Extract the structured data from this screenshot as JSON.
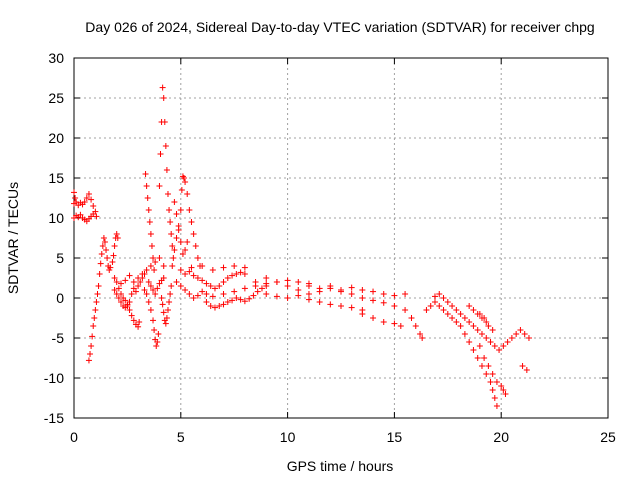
{
  "chart_data": {
    "type": "scatter",
    "title": "Day 026 of 2024, Sidereal Day-to-day VTEC variation (SDTVAR) for receiver chpg",
    "xlabel": "GPS time / hours",
    "ylabel": "SDTVAR / TECUs",
    "xlim": [
      0,
      25
    ],
    "ylim": [
      -15,
      30
    ],
    "xticks": [
      "0",
      "5",
      "10",
      "15",
      "20",
      "25"
    ],
    "yticks": [
      "-15",
      "-10",
      "-5",
      "0",
      "5",
      "10",
      "15",
      "20",
      "25",
      "30"
    ],
    "grid": true,
    "marker": "+",
    "series_color": "#ff0000",
    "series": [
      {
        "name": "SDTVAR",
        "points": [
          [
            0.0,
            11.8
          ],
          [
            0.1,
            12.0
          ],
          [
            0.2,
            11.6
          ],
          [
            0.3,
            11.9
          ],
          [
            0.4,
            11.7
          ],
          [
            0.5,
            12.0
          ],
          [
            0.6,
            12.5
          ],
          [
            0.7,
            13.0
          ],
          [
            0.8,
            12.3
          ],
          [
            0.9,
            11.5
          ],
          [
            0.0,
            10.0
          ],
          [
            0.1,
            10.3
          ],
          [
            0.2,
            10.1
          ],
          [
            0.3,
            10.4
          ],
          [
            0.4,
            10.0
          ],
          [
            0.5,
            9.8
          ],
          [
            0.6,
            9.6
          ],
          [
            0.7,
            9.9
          ],
          [
            0.8,
            10.2
          ],
          [
            0.9,
            10.5
          ],
          [
            1.0,
            10.8
          ],
          [
            1.05,
            10.2
          ],
          [
            0.0,
            13.2
          ],
          [
            0.05,
            12.5
          ],
          [
            0.7,
            -7.8
          ],
          [
            0.75,
            -7.0
          ],
          [
            0.8,
            -6.0
          ],
          [
            0.85,
            -4.8
          ],
          [
            0.9,
            -3.5
          ],
          [
            0.95,
            -2.5
          ],
          [
            1.0,
            -1.5
          ],
          [
            1.05,
            -0.5
          ],
          [
            1.1,
            0.5
          ],
          [
            1.15,
            1.5
          ],
          [
            1.2,
            3.0
          ],
          [
            1.25,
            4.3
          ],
          [
            1.3,
            5.5
          ],
          [
            1.35,
            6.5
          ],
          [
            1.4,
            7.5
          ],
          [
            1.45,
            7.0
          ],
          [
            1.5,
            6.0
          ],
          [
            1.55,
            5.0
          ],
          [
            1.6,
            4.0
          ],
          [
            1.65,
            3.5
          ],
          [
            1.7,
            3.8
          ],
          [
            1.8,
            4.5
          ],
          [
            1.85,
            5.3
          ],
          [
            1.9,
            6.5
          ],
          [
            1.95,
            7.5
          ],
          [
            2.0,
            8.0
          ],
          [
            2.05,
            7.5
          ],
          [
            1.9,
            2.5
          ],
          [
            2.0,
            2.0
          ],
          [
            2.1,
            1.2
          ],
          [
            2.2,
            0.5
          ],
          [
            2.3,
            0.0
          ],
          [
            2.4,
            -0.3
          ],
          [
            2.5,
            -0.8
          ],
          [
            2.6,
            -1.5
          ],
          [
            2.7,
            -2.2
          ],
          [
            2.8,
            -2.8
          ],
          [
            2.9,
            -3.3
          ],
          [
            3.0,
            -3.6
          ],
          [
            3.05,
            -3.0
          ],
          [
            1.9,
            1.0
          ],
          [
            2.0,
            0.5
          ],
          [
            2.1,
            0.0
          ],
          [
            2.2,
            -0.5
          ],
          [
            2.3,
            -1.0
          ],
          [
            2.4,
            -1.2
          ],
          [
            2.5,
            -1.0
          ],
          [
            2.6,
            -0.5
          ],
          [
            2.7,
            0.5
          ],
          [
            2.8,
            1.2
          ],
          [
            2.9,
            0.8
          ],
          [
            3.0,
            1.5
          ],
          [
            3.1,
            2.0
          ],
          [
            3.2,
            2.5
          ],
          [
            3.3,
            3.0
          ],
          [
            2.2,
            1.8
          ],
          [
            2.4,
            2.2
          ],
          [
            2.6,
            2.8
          ],
          [
            2.8,
            2.0
          ],
          [
            3.0,
            2.5
          ],
          [
            3.2,
            3.0
          ],
          [
            3.4,
            3.5
          ],
          [
            3.6,
            4.0
          ],
          [
            3.8,
            4.5
          ],
          [
            4.0,
            5.0
          ],
          [
            4.2,
            4.0
          ],
          [
            3.3,
            1.0
          ],
          [
            3.4,
            0.5
          ],
          [
            3.5,
            -0.5
          ],
          [
            3.6,
            -1.5
          ],
          [
            3.7,
            -2.8
          ],
          [
            3.75,
            -4.0
          ],
          [
            3.8,
            -5.2
          ],
          [
            3.85,
            -6.0
          ],
          [
            3.9,
            -5.5
          ],
          [
            3.95,
            -4.5
          ],
          [
            3.35,
            15.5
          ],
          [
            3.4,
            14.0
          ],
          [
            3.45,
            12.5
          ],
          [
            3.5,
            11.0
          ],
          [
            3.55,
            9.5
          ],
          [
            3.6,
            8.0
          ],
          [
            3.65,
            6.5
          ],
          [
            3.7,
            5.0
          ],
          [
            3.75,
            3.5
          ],
          [
            3.5,
            2.0
          ],
          [
            3.6,
            1.5
          ],
          [
            3.7,
            1.0
          ],
          [
            3.8,
            0.5
          ],
          [
            3.9,
            1.2
          ],
          [
            4.0,
            1.8
          ],
          [
            4.1,
            2.2
          ],
          [
            4.2,
            2.5
          ],
          [
            4.0,
            14.0
          ],
          [
            4.05,
            18.0
          ],
          [
            4.1,
            22.0
          ],
          [
            4.15,
            26.3
          ],
          [
            4.2,
            25.0
          ],
          [
            4.25,
            22.0
          ],
          [
            4.3,
            19.0
          ],
          [
            4.35,
            16.0
          ],
          [
            4.4,
            13.0
          ],
          [
            4.45,
            11.0
          ],
          [
            4.5,
            9.5
          ],
          [
            4.55,
            8.0
          ],
          [
            4.6,
            6.5
          ],
          [
            4.65,
            5.0
          ],
          [
            4.1,
            0.0
          ],
          [
            4.15,
            -0.8
          ],
          [
            4.2,
            -1.8
          ],
          [
            4.25,
            -2.8
          ],
          [
            4.3,
            -3.2
          ],
          [
            4.35,
            -2.5
          ],
          [
            4.4,
            -1.5
          ],
          [
            4.45,
            -0.5
          ],
          [
            4.5,
            0.5
          ],
          [
            4.55,
            1.5
          ],
          [
            4.6,
            4.0
          ],
          [
            4.7,
            6.0
          ],
          [
            4.8,
            7.5
          ],
          [
            4.9,
            8.5
          ],
          [
            5.0,
            7.0
          ],
          [
            5.1,
            5.5
          ],
          [
            5.2,
            6.0
          ],
          [
            5.3,
            7.0
          ],
          [
            4.7,
            12.0
          ],
          [
            4.8,
            10.5
          ],
          [
            4.9,
            9.0
          ],
          [
            5.0,
            11.0
          ],
          [
            5.05,
            13.5
          ],
          [
            5.1,
            15.2
          ],
          [
            5.15,
            15.0
          ],
          [
            5.2,
            14.5
          ],
          [
            5.3,
            13.0
          ],
          [
            5.4,
            11.0
          ],
          [
            5.5,
            9.5
          ],
          [
            5.6,
            8.0
          ],
          [
            5.7,
            6.5
          ],
          [
            5.8,
            5.0
          ],
          [
            5.9,
            4.0
          ],
          [
            4.8,
            2.0
          ],
          [
            5.0,
            1.5
          ],
          [
            5.2,
            1.0
          ],
          [
            5.4,
            0.5
          ],
          [
            5.6,
            0.0
          ],
          [
            5.8,
            0.3
          ],
          [
            6.0,
            0.8
          ],
          [
            6.2,
            0.5
          ],
          [
            5.0,
            3.5
          ],
          [
            5.2,
            3.0
          ],
          [
            5.4,
            3.3
          ],
          [
            5.6,
            2.8
          ],
          [
            5.8,
            2.5
          ],
          [
            6.0,
            2.2
          ],
          [
            6.2,
            1.8
          ],
          [
            6.4,
            1.5
          ],
          [
            6.6,
            1.2
          ],
          [
            6.8,
            1.5
          ],
          [
            7.0,
            2.0
          ],
          [
            7.2,
            2.5
          ],
          [
            7.4,
            2.8
          ],
          [
            7.6,
            3.0
          ],
          [
            7.8,
            3.2
          ],
          [
            8.0,
            3.0
          ],
          [
            5.5,
            3.8
          ],
          [
            6.0,
            4.0
          ],
          [
            6.5,
            3.5
          ],
          [
            7.0,
            3.8
          ],
          [
            7.5,
            4.0
          ],
          [
            8.0,
            3.8
          ],
          [
            6.2,
            -0.5
          ],
          [
            6.4,
            -1.0
          ],
          [
            6.6,
            -1.2
          ],
          [
            6.8,
            -1.0
          ],
          [
            7.0,
            -0.8
          ],
          [
            7.2,
            -0.5
          ],
          [
            7.4,
            -0.3
          ],
          [
            7.6,
            0.0
          ],
          [
            7.8,
            -0.2
          ],
          [
            8.0,
            -0.4
          ],
          [
            8.2,
            -0.1
          ],
          [
            8.4,
            0.3
          ],
          [
            8.6,
            0.8
          ],
          [
            8.8,
            1.2
          ],
          [
            9.0,
            1.5
          ],
          [
            6.5,
            0.2
          ],
          [
            7.0,
            0.5
          ],
          [
            7.5,
            0.8
          ],
          [
            8.0,
            1.2
          ],
          [
            8.5,
            1.5
          ],
          [
            9.0,
            1.8
          ],
          [
            9.5,
            2.0
          ],
          [
            10.0,
            2.2
          ],
          [
            10.5,
            2.0
          ],
          [
            11.0,
            1.8
          ],
          [
            8.5,
            2.0
          ],
          [
            9.0,
            2.5
          ],
          [
            9.5,
            2.0
          ],
          [
            10.0,
            1.5
          ],
          [
            10.5,
            1.0
          ],
          [
            11.0,
            0.5
          ],
          [
            11.5,
            0.8
          ],
          [
            12.0,
            1.2
          ],
          [
            12.5,
            0.8
          ],
          [
            13.0,
            0.5
          ],
          [
            9.0,
            0.5
          ],
          [
            9.5,
            0.2
          ],
          [
            10.0,
            0.0
          ],
          [
            10.5,
            0.3
          ],
          [
            11.0,
            -0.2
          ],
          [
            11.5,
            -0.5
          ],
          [
            12.0,
            -0.8
          ],
          [
            12.5,
            -1.0
          ],
          [
            13.0,
            -1.2
          ],
          [
            13.5,
            -1.5
          ],
          [
            11.0,
            1.5
          ],
          [
            11.5,
            1.2
          ],
          [
            12.0,
            1.5
          ],
          [
            12.5,
            1.0
          ],
          [
            13.0,
            1.3
          ],
          [
            13.5,
            1.0
          ],
          [
            14.0,
            0.8
          ],
          [
            14.5,
            0.5
          ],
          [
            15.0,
            0.3
          ],
          [
            15.5,
            0.5
          ],
          [
            13.5,
            0.0
          ],
          [
            14.0,
            -0.3
          ],
          [
            14.5,
            -0.6
          ],
          [
            15.0,
            -1.0
          ],
          [
            15.5,
            -1.5
          ],
          [
            15.8,
            -2.5
          ],
          [
            16.0,
            -3.5
          ],
          [
            16.2,
            -4.5
          ],
          [
            16.3,
            -5.0
          ],
          [
            13.5,
            -2.0
          ],
          [
            14.0,
            -2.5
          ],
          [
            14.5,
            -3.0
          ],
          [
            15.0,
            -3.2
          ],
          [
            15.3,
            -3.5
          ],
          [
            16.5,
            -1.5
          ],
          [
            16.7,
            -1.0
          ],
          [
            16.9,
            0.2
          ],
          [
            17.1,
            0.5
          ],
          [
            17.3,
            0.0
          ],
          [
            17.5,
            -0.5
          ],
          [
            17.7,
            -1.0
          ],
          [
            17.9,
            -1.5
          ],
          [
            18.1,
            -2.0
          ],
          [
            18.3,
            -2.5
          ],
          [
            18.5,
            -3.0
          ],
          [
            18.7,
            -3.5
          ],
          [
            18.9,
            -4.0
          ],
          [
            19.1,
            -4.5
          ],
          [
            19.3,
            -5.0
          ],
          [
            19.5,
            -5.5
          ],
          [
            19.7,
            -6.0
          ],
          [
            19.9,
            -6.5
          ],
          [
            20.1,
            -6.0
          ],
          [
            20.3,
            -5.5
          ],
          [
            20.5,
            -5.0
          ],
          [
            20.7,
            -4.5
          ],
          [
            20.9,
            -4.0
          ],
          [
            21.1,
            -4.5
          ],
          [
            21.3,
            -5.0
          ],
          [
            16.9,
            -0.5
          ],
          [
            17.1,
            -1.0
          ],
          [
            17.3,
            -1.5
          ],
          [
            17.5,
            -2.0
          ],
          [
            17.7,
            -2.5
          ],
          [
            17.9,
            -3.0
          ],
          [
            18.1,
            -3.5
          ],
          [
            18.3,
            -4.5
          ],
          [
            18.5,
            -5.5
          ],
          [
            18.7,
            -6.5
          ],
          [
            18.9,
            -7.5
          ],
          [
            19.1,
            -8.5
          ],
          [
            19.3,
            -9.5
          ],
          [
            19.5,
            -10.5
          ],
          [
            19.6,
            -11.5
          ],
          [
            19.7,
            -12.5
          ],
          [
            19.8,
            -13.5
          ],
          [
            19.0,
            -6.0
          ],
          [
            19.2,
            -7.5
          ],
          [
            19.4,
            -8.5
          ],
          [
            19.6,
            -9.5
          ],
          [
            19.8,
            -10.5
          ],
          [
            20.0,
            -11.0
          ],
          [
            20.1,
            -11.5
          ],
          [
            20.2,
            -12.0
          ],
          [
            18.5,
            -1.0
          ],
          [
            18.7,
            -1.5
          ],
          [
            18.9,
            -2.0
          ],
          [
            19.1,
            -2.5
          ],
          [
            19.3,
            -3.0
          ],
          [
            19.0,
            -2.0
          ],
          [
            19.2,
            -2.5
          ],
          [
            19.4,
            -3.5
          ],
          [
            19.6,
            -4.0
          ],
          [
            21.0,
            -8.5
          ],
          [
            21.2,
            -9.0
          ]
        ]
      }
    ]
  }
}
